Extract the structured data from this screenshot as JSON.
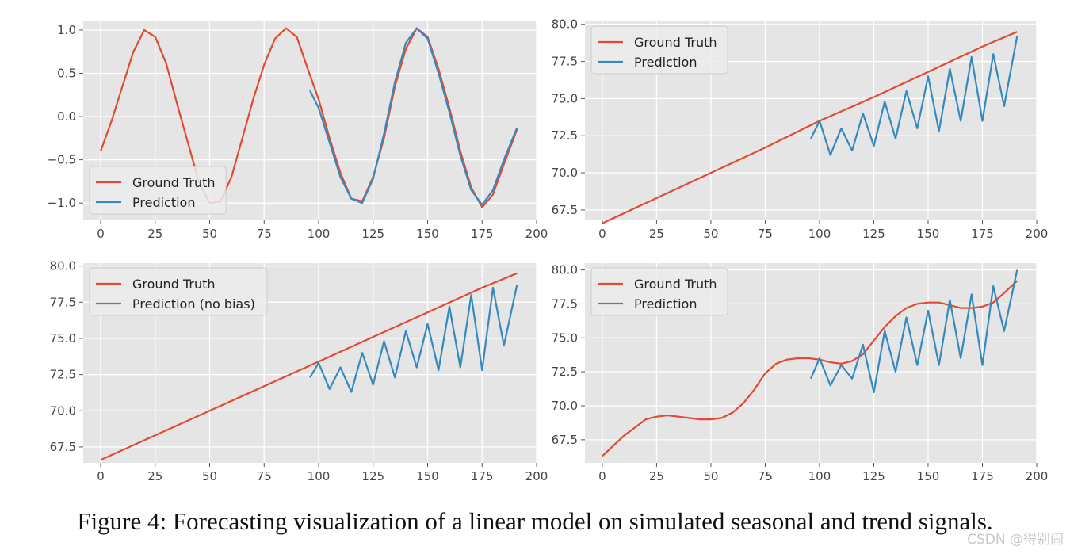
{
  "caption": "Figure 4: Forecasting visualization of a linear model on simulated seasonal and trend signals.",
  "watermark": "CSDN @得别闹",
  "colors": {
    "ground_truth": "#e24a33",
    "prediction": "#348abd",
    "axes_bg": "#e5e5e5",
    "grid": "#ffffff"
  },
  "chart_data": [
    {
      "type": "line",
      "title": "",
      "xlabel": "",
      "ylabel": "",
      "xlim": [
        -8,
        200
      ],
      "ylim": [
        -1.2,
        1.1
      ],
      "xticks": [
        0,
        25,
        50,
        75,
        100,
        125,
        150,
        175,
        200
      ],
      "yticks": [
        -1.0,
        -0.5,
        0.0,
        0.5,
        1.0
      ],
      "ytick_labels": [
        "−1.0",
        "−0.5",
        "0.0",
        "0.5",
        "1.0"
      ],
      "grid": true,
      "legend_position": "lower-left",
      "series": [
        {
          "name": "Ground Truth",
          "color_key": "ground_truth",
          "x": [
            0,
            5,
            10,
            15,
            20,
            25,
            30,
            35,
            40,
            45,
            50,
            55,
            60,
            65,
            70,
            75,
            80,
            85,
            90,
            95,
            100,
            105,
            110,
            115,
            120,
            125,
            130,
            135,
            140,
            145,
            150,
            155,
            160,
            165,
            170,
            175,
            180,
            185,
            191
          ],
          "y": [
            -0.4,
            -0.05,
            0.35,
            0.75,
            1.0,
            0.92,
            0.62,
            0.15,
            -0.3,
            -0.75,
            -1.0,
            -0.98,
            -0.7,
            -0.25,
            0.2,
            0.6,
            0.9,
            1.02,
            0.92,
            0.55,
            0.2,
            -0.25,
            -0.65,
            -0.95,
            -0.98,
            -0.7,
            -0.25,
            0.35,
            0.78,
            1.02,
            0.92,
            0.55,
            0.1,
            -0.4,
            -0.82,
            -1.05,
            -0.9,
            -0.55,
            -0.15
          ]
        },
        {
          "name": "Prediction",
          "color_key": "prediction",
          "x": [
            96,
            100,
            105,
            110,
            115,
            120,
            125,
            130,
            135,
            140,
            145,
            150,
            155,
            160,
            165,
            170,
            175,
            180,
            185,
            191
          ],
          "y": [
            0.3,
            0.1,
            -0.3,
            -0.7,
            -0.95,
            -1.0,
            -0.72,
            -0.2,
            0.4,
            0.85,
            1.02,
            0.9,
            0.5,
            0.05,
            -0.45,
            -0.85,
            -1.02,
            -0.85,
            -0.5,
            -0.13
          ]
        }
      ]
    },
    {
      "type": "line",
      "title": "",
      "xlabel": "",
      "ylabel": "",
      "xlim": [
        -8,
        200
      ],
      "ylim": [
        66.8,
        80.2
      ],
      "xticks": [
        0,
        25,
        50,
        75,
        100,
        125,
        150,
        175,
        200
      ],
      "yticks": [
        67.5,
        70.0,
        72.5,
        75.0,
        77.5,
        80.0
      ],
      "ytick_labels": [
        "67.5",
        "70.0",
        "72.5",
        "75.0",
        "77.5",
        "80.0"
      ],
      "grid": true,
      "legend_position": "upper-left",
      "series": [
        {
          "name": "Ground Truth",
          "color_key": "ground_truth",
          "x": [
            0,
            25,
            50,
            75,
            100,
            125,
            150,
            175,
            191
          ],
          "y": [
            66.6,
            68.3,
            70.0,
            71.7,
            73.5,
            75.1,
            76.8,
            78.5,
            79.5
          ]
        },
        {
          "name": "Prediction",
          "color_key": "prediction",
          "x": [
            96,
            100,
            105,
            110,
            115,
            120,
            125,
            130,
            135,
            140,
            145,
            150,
            155,
            160,
            165,
            170,
            175,
            180,
            185,
            191
          ],
          "y": [
            72.3,
            73.5,
            71.2,
            73.0,
            71.5,
            74.0,
            71.8,
            74.8,
            72.3,
            75.5,
            73.0,
            76.5,
            72.8,
            77.0,
            73.5,
            77.8,
            73.5,
            78.0,
            74.5,
            79.2
          ]
        }
      ]
    },
    {
      "type": "line",
      "title": "",
      "xlabel": "",
      "ylabel": "",
      "xlim": [
        -8,
        200
      ],
      "ylim": [
        66.4,
        80.2
      ],
      "xticks": [
        0,
        25,
        50,
        75,
        100,
        125,
        150,
        175,
        200
      ],
      "yticks": [
        67.5,
        70.0,
        72.5,
        75.0,
        77.5,
        80.0
      ],
      "ytick_labels": [
        "67.5",
        "70.0",
        "72.5",
        "75.0",
        "77.5",
        "80.0"
      ],
      "grid": true,
      "legend_position": "upper-left",
      "series": [
        {
          "name": "Ground Truth",
          "color_key": "ground_truth",
          "x": [
            0,
            25,
            50,
            75,
            100,
            125,
            150,
            175,
            191
          ],
          "y": [
            66.6,
            68.3,
            70.0,
            71.7,
            73.4,
            75.1,
            76.8,
            78.5,
            79.5
          ]
        },
        {
          "name": "Prediction (no bias)",
          "color_key": "prediction",
          "x": [
            96,
            100,
            105,
            110,
            115,
            120,
            125,
            130,
            135,
            140,
            145,
            150,
            155,
            160,
            165,
            170,
            175,
            180,
            185,
            191
          ],
          "y": [
            72.3,
            73.3,
            71.5,
            73.0,
            71.3,
            74.0,
            71.8,
            74.8,
            72.3,
            75.5,
            73.0,
            76.0,
            72.8,
            77.2,
            73.0,
            78.0,
            72.8,
            78.5,
            74.5,
            78.7
          ]
        }
      ]
    },
    {
      "type": "line",
      "title": "",
      "xlabel": "",
      "ylabel": "",
      "xlim": [
        -8,
        200
      ],
      "ylim": [
        65.8,
        80.5
      ],
      "xticks": [
        0,
        25,
        50,
        75,
        100,
        125,
        150,
        175,
        200
      ],
      "yticks": [
        67.5,
        70.0,
        72.5,
        75.0,
        77.5,
        80.0
      ],
      "ytick_labels": [
        "67.5",
        "70.0",
        "72.5",
        "75.0",
        "77.5",
        "80.0"
      ],
      "grid": true,
      "legend_position": "upper-left",
      "series": [
        {
          "name": "Ground Truth",
          "color_key": "ground_truth",
          "x": [
            0,
            10,
            20,
            25,
            30,
            35,
            40,
            45,
            50,
            55,
            60,
            65,
            70,
            75,
            80,
            85,
            90,
            95,
            100,
            105,
            110,
            115,
            120,
            125,
            130,
            135,
            140,
            145,
            150,
            155,
            160,
            165,
            170,
            175,
            180,
            185,
            191
          ],
          "y": [
            66.3,
            67.8,
            69.0,
            69.2,
            69.3,
            69.2,
            69.1,
            69.0,
            69.0,
            69.1,
            69.5,
            70.2,
            71.2,
            72.4,
            73.1,
            73.4,
            73.5,
            73.5,
            73.4,
            73.2,
            73.1,
            73.3,
            73.8,
            74.8,
            75.8,
            76.6,
            77.2,
            77.5,
            77.6,
            77.6,
            77.4,
            77.2,
            77.2,
            77.3,
            77.6,
            78.3,
            79.2
          ]
        },
        {
          "name": "Prediction",
          "color_key": "prediction",
          "x": [
            96,
            100,
            105,
            110,
            115,
            120,
            125,
            130,
            135,
            140,
            145,
            150,
            155,
            160,
            165,
            170,
            175,
            180,
            185,
            191
          ],
          "y": [
            72.0,
            73.5,
            71.5,
            73.0,
            72.0,
            74.5,
            71.0,
            75.5,
            72.5,
            76.5,
            73.0,
            77.0,
            73.0,
            77.8,
            73.5,
            78.2,
            73.0,
            78.8,
            75.5,
            80.0
          ]
        }
      ]
    }
  ]
}
